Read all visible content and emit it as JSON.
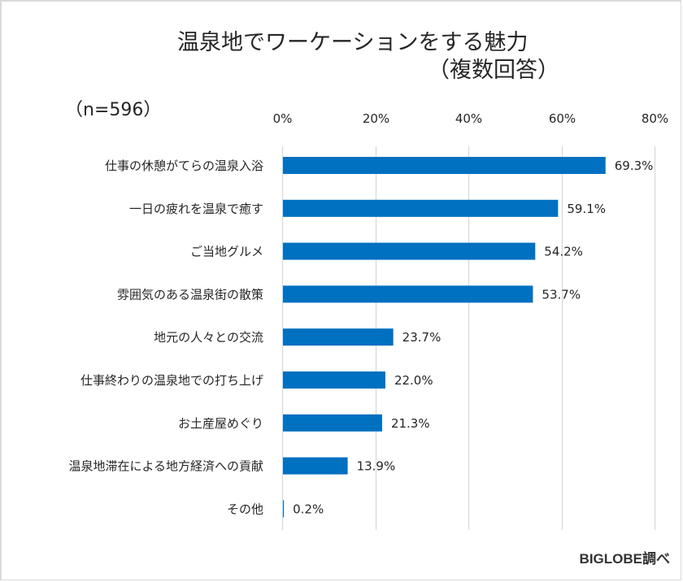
{
  "chart_data": {
    "type": "bar",
    "orientation": "horizontal",
    "title": "温泉地でワーケーションをする魅力",
    "subtitle": "（複数回答）",
    "sample_size_label": "（n=596）",
    "source": "BIGLOBE調べ",
    "xlabel": "",
    "ylabel": "",
    "xlim": [
      0,
      80
    ],
    "x_ticks": [
      0,
      20,
      40,
      60,
      80
    ],
    "x_tick_labels": [
      "0%",
      "20%",
      "40%",
      "60%",
      "80%"
    ],
    "x_axis_position": "top",
    "grid": true,
    "legend": "none",
    "bar_color": "#0070C0",
    "gridline_color": "#D9D9D9",
    "categories": [
      "仕事の休憩がてらの温泉入浴",
      "一日の疲れを温泉で癒す",
      "ご当地グルメ",
      "雰囲気のある温泉街の散策",
      "地元の人々との交流",
      "仕事終わりの温泉地での打ち上げ",
      "お土産屋めぐり",
      "温泉地滞在による地方経済への貢献",
      "その他"
    ],
    "values": [
      69.3,
      59.1,
      54.2,
      53.7,
      23.7,
      22.0,
      21.3,
      13.9,
      0.2
    ],
    "value_labels": [
      "69.3%",
      "59.1%",
      "54.2%",
      "53.7%",
      "23.7%",
      "22.0%",
      "21.3%",
      "13.9%",
      "0.2%"
    ]
  }
}
